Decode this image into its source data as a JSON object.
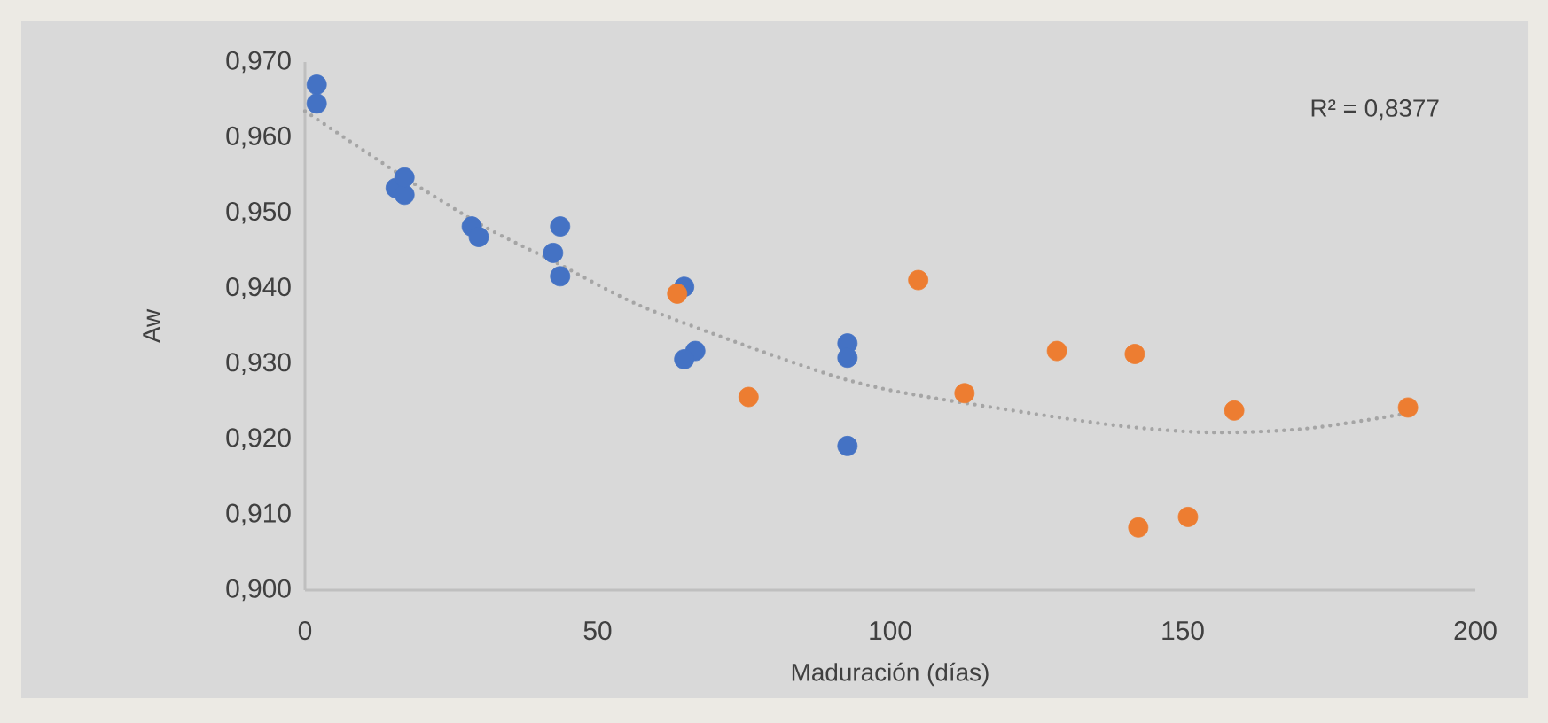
{
  "chart_data": {
    "type": "scatter",
    "xlabel": "Maduración (días)",
    "ylabel": "Aw",
    "xlim": [
      0,
      200
    ],
    "xticks": [
      0,
      50,
      100,
      150,
      200
    ],
    "ylim": [
      0.9,
      0.97
    ],
    "yticks": [
      {
        "value": 0.9,
        "label": "0,900"
      },
      {
        "value": 0.91,
        "label": "0,910"
      },
      {
        "value": 0.92,
        "label": "0,920"
      },
      {
        "value": 0.93,
        "label": "0,930"
      },
      {
        "value": 0.94,
        "label": "0,940"
      },
      {
        "value": 0.95,
        "label": "0,950"
      },
      {
        "value": 0.96,
        "label": "0,960"
      },
      {
        "value": 0.97,
        "label": "0,970"
      }
    ],
    "annotations": [
      "R² = 0,8377"
    ],
    "series": [
      {
        "marker": "circle",
        "color": "#4472c4",
        "x": [
          2,
          2,
          15.5,
          17,
          17,
          28.5,
          29.7,
          43.6,
          42.4,
          43.6,
          64.8,
          66.7,
          64.8,
          92.7,
          92.7,
          92.7
        ],
        "values": [
          0.967,
          0.9645,
          0.9533,
          0.9524,
          0.9547,
          0.9482,
          0.9468,
          0.9482,
          0.9447,
          0.9416,
          0.9402,
          0.9317,
          0.9306,
          0.9327,
          0.9308,
          0.9191
        ]
      },
      {
        "marker": "circle",
        "color": "#ed7d31",
        "x": [
          63.6,
          75.8,
          104.8,
          112.7,
          128.5,
          141.8,
          142.4,
          150.9,
          158.8,
          188.5
        ],
        "values": [
          0.9393,
          0.9256,
          0.9411,
          0.9261,
          0.9317,
          0.9313,
          0.9083,
          0.9097,
          0.9238,
          0.9242
        ]
      },
      {
        "type": "line",
        "marker": "none",
        "line_style": "dotted",
        "color": "#a5a5a5",
        "x": [
          0,
          17,
          30.6,
          42.7,
          57,
          75,
          90.3,
          100,
          113.6,
          137.9,
          154.5,
          171,
          189
        ],
        "values": [
          0.9635,
          0.9547,
          0.9482,
          0.9435,
          0.9378,
          0.9325,
          0.9284,
          0.9265,
          0.9247,
          0.9219,
          0.9209,
          0.9214,
          0.9235
        ]
      }
    ]
  }
}
